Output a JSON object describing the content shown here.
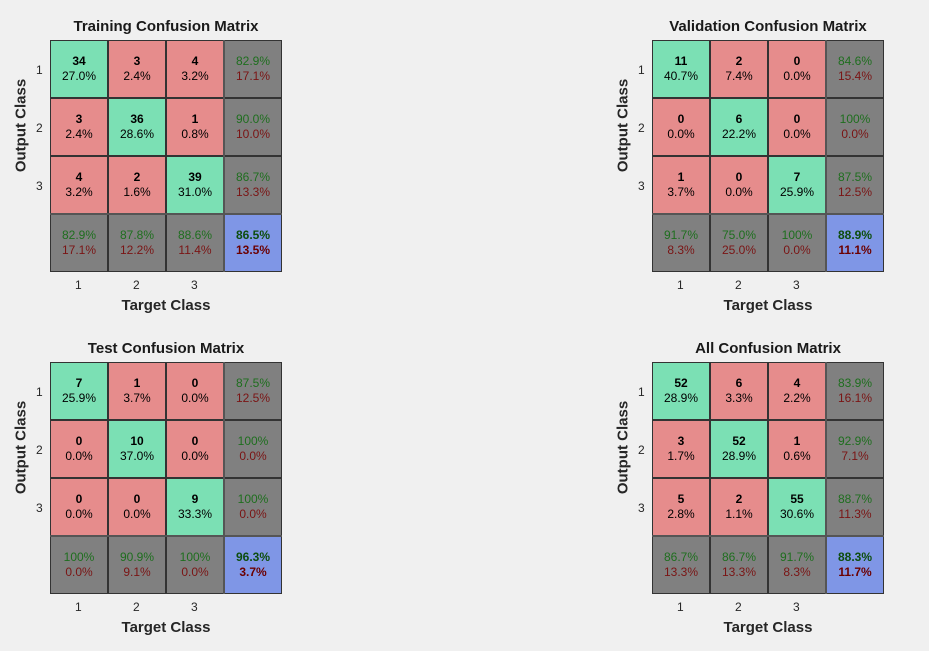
{
  "chart_data": [
    {
      "type": "table",
      "title": "Training Confusion Matrix",
      "xlabel": "Target Class",
      "ylabel": "Output Class",
      "x_ticks": [
        "1",
        "2",
        "3"
      ],
      "y_ticks": [
        "1",
        "2",
        "3"
      ],
      "cells": [
        [
          {
            "count": "34",
            "pct": "27.0%"
          },
          {
            "count": "3",
            "pct": "2.4%"
          },
          {
            "count": "4",
            "pct": "3.2%"
          }
        ],
        [
          {
            "count": "3",
            "pct": "2.4%"
          },
          {
            "count": "36",
            "pct": "28.6%"
          },
          {
            "count": "1",
            "pct": "0.8%"
          }
        ],
        [
          {
            "count": "4",
            "pct": "3.2%"
          },
          {
            "count": "2",
            "pct": "1.6%"
          },
          {
            "count": "39",
            "pct": "31.0%"
          }
        ]
      ],
      "row_summary": [
        [
          "82.9%",
          "17.1%"
        ],
        [
          "90.0%",
          "10.0%"
        ],
        [
          "86.7%",
          "13.3%"
        ]
      ],
      "col_summary": [
        [
          "82.9%",
          "17.1%"
        ],
        [
          "87.8%",
          "12.2%"
        ],
        [
          "88.6%",
          "11.4%"
        ]
      ],
      "total": [
        "86.5%",
        "13.5%"
      ]
    },
    {
      "type": "table",
      "title": "Validation Confusion Matrix",
      "xlabel": "Target Class",
      "ylabel": "Output Class",
      "x_ticks": [
        "1",
        "2",
        "3"
      ],
      "y_ticks": [
        "1",
        "2",
        "3"
      ],
      "cells": [
        [
          {
            "count": "11",
            "pct": "40.7%"
          },
          {
            "count": "2",
            "pct": "7.4%"
          },
          {
            "count": "0",
            "pct": "0.0%"
          }
        ],
        [
          {
            "count": "0",
            "pct": "0.0%"
          },
          {
            "count": "6",
            "pct": "22.2%"
          },
          {
            "count": "0",
            "pct": "0.0%"
          }
        ],
        [
          {
            "count": "1",
            "pct": "3.7%"
          },
          {
            "count": "0",
            "pct": "0.0%"
          },
          {
            "count": "7",
            "pct": "25.9%"
          }
        ]
      ],
      "row_summary": [
        [
          "84.6%",
          "15.4%"
        ],
        [
          "100%",
          "0.0%"
        ],
        [
          "87.5%",
          "12.5%"
        ]
      ],
      "col_summary": [
        [
          "91.7%",
          "8.3%"
        ],
        [
          "75.0%",
          "25.0%"
        ],
        [
          "100%",
          "0.0%"
        ]
      ],
      "total": [
        "88.9%",
        "11.1%"
      ]
    },
    {
      "type": "table",
      "title": "Test Confusion Matrix",
      "xlabel": "Target Class",
      "ylabel": "Output Class",
      "x_ticks": [
        "1",
        "2",
        "3"
      ],
      "y_ticks": [
        "1",
        "2",
        "3"
      ],
      "cells": [
        [
          {
            "count": "7",
            "pct": "25.9%"
          },
          {
            "count": "1",
            "pct": "3.7%"
          },
          {
            "count": "0",
            "pct": "0.0%"
          }
        ],
        [
          {
            "count": "0",
            "pct": "0.0%"
          },
          {
            "count": "10",
            "pct": "37.0%"
          },
          {
            "count": "0",
            "pct": "0.0%"
          }
        ],
        [
          {
            "count": "0",
            "pct": "0.0%"
          },
          {
            "count": "0",
            "pct": "0.0%"
          },
          {
            "count": "9",
            "pct": "33.3%"
          }
        ]
      ],
      "row_summary": [
        [
          "87.5%",
          "12.5%"
        ],
        [
          "100%",
          "0.0%"
        ],
        [
          "100%",
          "0.0%"
        ]
      ],
      "col_summary": [
        [
          "100%",
          "0.0%"
        ],
        [
          "90.9%",
          "9.1%"
        ],
        [
          "100%",
          "0.0%"
        ]
      ],
      "total": [
        "96.3%",
        "3.7%"
      ]
    },
    {
      "type": "table",
      "title": "All Confusion Matrix",
      "xlabel": "Target Class",
      "ylabel": "Output Class",
      "x_ticks": [
        "1",
        "2",
        "3"
      ],
      "y_ticks": [
        "1",
        "2",
        "3"
      ],
      "cells": [
        [
          {
            "count": "52",
            "pct": "28.9%"
          },
          {
            "count": "6",
            "pct": "3.3%"
          },
          {
            "count": "4",
            "pct": "2.2%"
          }
        ],
        [
          {
            "count": "3",
            "pct": "1.7%"
          },
          {
            "count": "52",
            "pct": "28.9%"
          },
          {
            "count": "1",
            "pct": "0.6%"
          }
        ],
        [
          {
            "count": "5",
            "pct": "2.8%"
          },
          {
            "count": "2",
            "pct": "1.1%"
          },
          {
            "count": "55",
            "pct": "30.6%"
          }
        ]
      ],
      "row_summary": [
        [
          "83.9%",
          "16.1%"
        ],
        [
          "92.9%",
          "7.1%"
        ],
        [
          "88.7%",
          "11.3%"
        ]
      ],
      "col_summary": [
        [
          "86.7%",
          "13.3%"
        ],
        [
          "86.7%",
          "13.3%"
        ],
        [
          "91.7%",
          "8.3%"
        ]
      ],
      "total": [
        "88.3%",
        "11.7%"
      ]
    }
  ],
  "colors": {
    "correct": "#7be0b4",
    "incorrect": "#e68c8c",
    "summary": "#808080",
    "total": "#7f96e6"
  }
}
